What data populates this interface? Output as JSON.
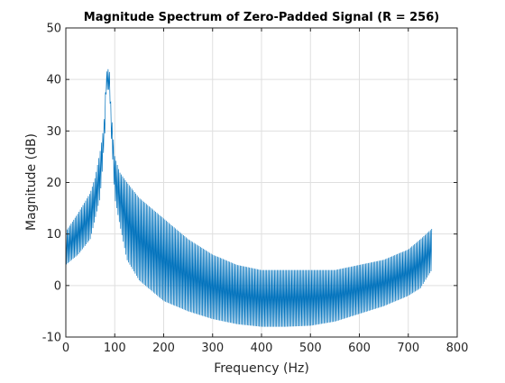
{
  "chart_data": {
    "type": "line",
    "title": "Magnitude Spectrum of Zero-Padded Signal (R = 256)",
    "xlabel": "Frequency (Hz)",
    "ylabel": "Magnitude (dB)",
    "xlim": [
      0,
      800
    ],
    "ylim": [
      -10,
      50
    ],
    "xticks": [
      "0",
      "100",
      "200",
      "300",
      "400",
      "500",
      "600",
      "700",
      "800"
    ],
    "yticks": [
      "-10",
      "0",
      "10",
      "20",
      "30",
      "40",
      "50"
    ],
    "grid": true,
    "line_color": "#0072bd",
    "series": [
      {
        "x": [
          0,
          25,
          50,
          60,
          70,
          75,
          80,
          82,
          85,
          88,
          90,
          92,
          95,
          100,
          110,
          125,
          150,
          200,
          250,
          300,
          350,
          400,
          450,
          500,
          550,
          600,
          650,
          700,
          725,
          748
        ],
        "upper": [
          10.5,
          14,
          18,
          21,
          26,
          29,
          34,
          41,
          42,
          42,
          41,
          35,
          31,
          25,
          22,
          20,
          17,
          13,
          9,
          6,
          4,
          3,
          3,
          3,
          3,
          4,
          5,
          7,
          9,
          11
        ],
        "lower": [
          4,
          6,
          9,
          13,
          17,
          23,
          30,
          37,
          38,
          38,
          37,
          30,
          26,
          17,
          12,
          5,
          1,
          -3,
          -5,
          -6.5,
          -7.5,
          -8,
          -8,
          -7.8,
          -7,
          -5.5,
          -4,
          -2,
          -0.5,
          3
        ]
      }
    ]
  }
}
